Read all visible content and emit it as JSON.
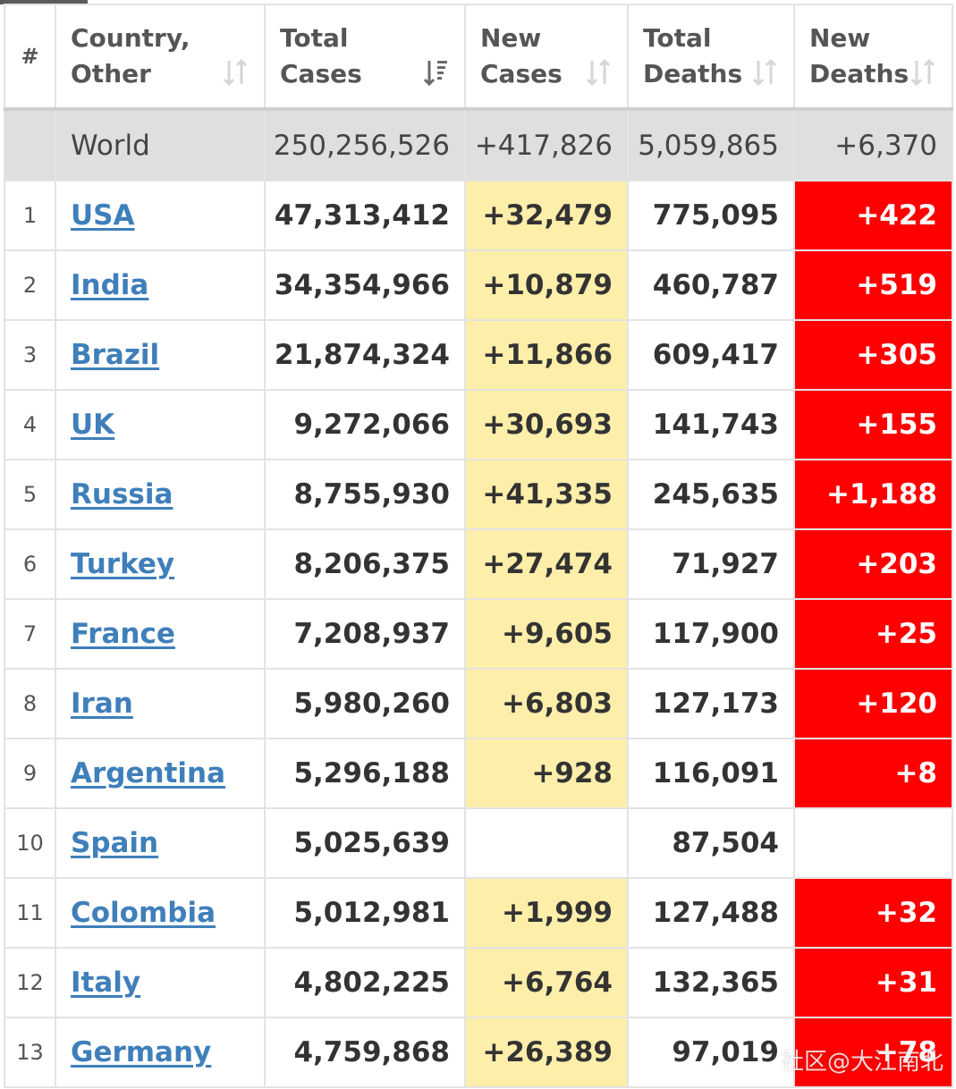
{
  "header": {
    "hash": "#",
    "country_line1": "Country,",
    "country_line2": "Other",
    "total_cases_line1": "Total",
    "total_cases_line2": "Cases",
    "new_cases_line1": "New",
    "new_cases_line2": "Cases",
    "total_deaths_line1": "Total",
    "total_deaths_line2": "Deaths",
    "new_deaths_line1": "New",
    "new_deaths_line2": "Deaths"
  },
  "world": {
    "name": "World",
    "total_cases": "250,256,526",
    "new_cases": "+417,826",
    "total_deaths": "5,059,865",
    "new_deaths": "+6,370"
  },
  "rows": [
    {
      "rank": "1",
      "country": "USA",
      "total_cases": "47,313,412",
      "new_cases": "+32,479",
      "total_deaths": "775,095",
      "new_deaths": "+422"
    },
    {
      "rank": "2",
      "country": "India",
      "total_cases": "34,354,966",
      "new_cases": "+10,879",
      "total_deaths": "460,787",
      "new_deaths": "+519"
    },
    {
      "rank": "3",
      "country": "Brazil",
      "total_cases": "21,874,324",
      "new_cases": "+11,866",
      "total_deaths": "609,417",
      "new_deaths": "+305"
    },
    {
      "rank": "4",
      "country": "UK",
      "total_cases": "9,272,066",
      "new_cases": "+30,693",
      "total_deaths": "141,743",
      "new_deaths": "+155"
    },
    {
      "rank": "5",
      "country": "Russia",
      "total_cases": "8,755,930",
      "new_cases": "+41,335",
      "total_deaths": "245,635",
      "new_deaths": "+1,188"
    },
    {
      "rank": "6",
      "country": "Turkey",
      "total_cases": "8,206,375",
      "new_cases": "+27,474",
      "total_deaths": "71,927",
      "new_deaths": "+203"
    },
    {
      "rank": "7",
      "country": "France",
      "total_cases": "7,208,937",
      "new_cases": "+9,605",
      "total_deaths": "117,900",
      "new_deaths": "+25"
    },
    {
      "rank": "8",
      "country": "Iran",
      "total_cases": "5,980,260",
      "new_cases": "+6,803",
      "total_deaths": "127,173",
      "new_deaths": "+120"
    },
    {
      "rank": "9",
      "country": "Argentina",
      "total_cases": "5,296,188",
      "new_cases": "+928",
      "total_deaths": "116,091",
      "new_deaths": "+8"
    },
    {
      "rank": "10",
      "country": "Spain",
      "total_cases": "5,025,639",
      "new_cases": "",
      "total_deaths": "87,504",
      "new_deaths": ""
    },
    {
      "rank": "11",
      "country": "Colombia",
      "total_cases": "5,012,981",
      "new_cases": "+1,999",
      "total_deaths": "127,488",
      "new_deaths": "+32"
    },
    {
      "rank": "12",
      "country": "Italy",
      "total_cases": "4,802,225",
      "new_cases": "+6,764",
      "total_deaths": "132,365",
      "new_deaths": "+31"
    },
    {
      "rank": "13",
      "country": "Germany",
      "total_cases": "4,759,868",
      "new_cases": "+26,389",
      "total_deaths": "97,019",
      "new_deaths": "+78"
    }
  ],
  "watermark": "社区@大江南北",
  "colors": {
    "new_cases_bg": "#fdeeaa",
    "new_deaths_bg": "#ff0000",
    "link": "#3f7fba",
    "world_bg": "#dfdfdf"
  }
}
